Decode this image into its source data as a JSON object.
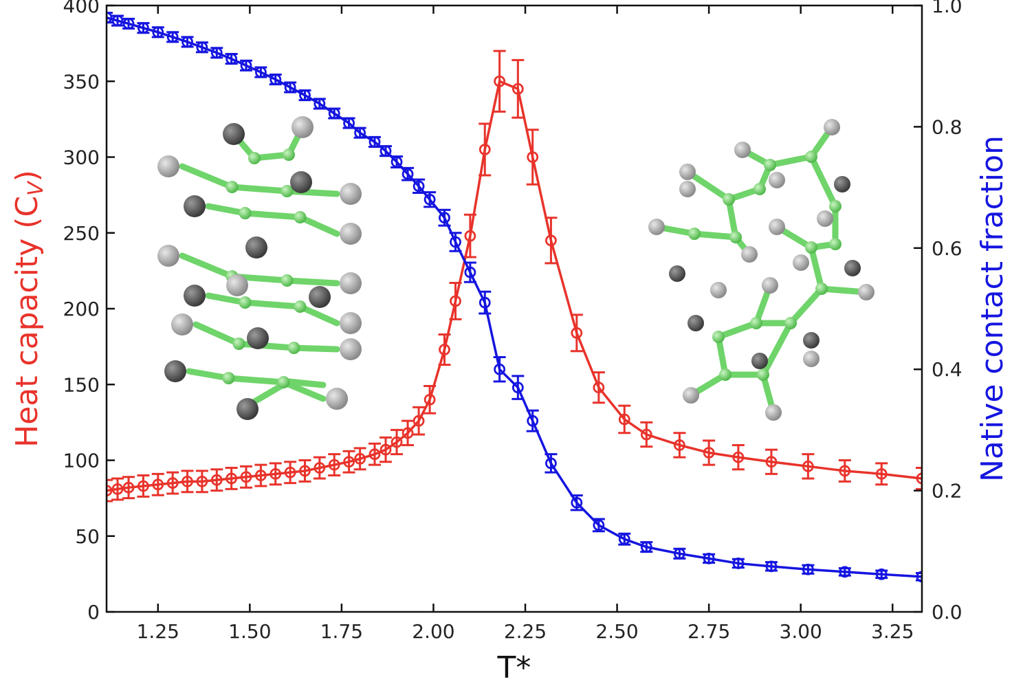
{
  "chart_data": {
    "type": "line",
    "xlabel": "T*",
    "ylabel_left": "Heat capacity (C",
    "ylabel_left_sub": "V",
    "ylabel_left_close": ")",
    "ylabel_right": "Native contact fraction",
    "xlim": [
      1.11,
      3.33
    ],
    "ylim_left": [
      0,
      400
    ],
    "ylim_right": [
      0.0,
      1.0
    ],
    "x_ticks": [
      "1.25",
      "1.50",
      "1.75",
      "2.00",
      "2.25",
      "2.50",
      "2.75",
      "3.00",
      "3.25"
    ],
    "y_ticks_left": [
      "0",
      "50",
      "100",
      "150",
      "200",
      "250",
      "300",
      "350",
      "400"
    ],
    "y_ticks_right": [
      "0.0",
      "0.2",
      "0.4",
      "0.6",
      "0.8",
      "1.0"
    ],
    "colors": {
      "heat_capacity": "#e8332b",
      "native_contacts": "#1515e0"
    },
    "series": [
      {
        "key": "heat_capacity",
        "axis": "left",
        "x": [
          1.11,
          1.14,
          1.17,
          1.21,
          1.25,
          1.29,
          1.33,
          1.37,
          1.41,
          1.45,
          1.49,
          1.53,
          1.57,
          1.61,
          1.65,
          1.69,
          1.73,
          1.77,
          1.8,
          1.84,
          1.87,
          1.9,
          1.93,
          1.96,
          1.99,
          2.03,
          2.06,
          2.1,
          2.14,
          2.18,
          2.23,
          2.27,
          2.32,
          2.39,
          2.45,
          2.52,
          2.58,
          2.67,
          2.75,
          2.83,
          2.92,
          3.02,
          3.12,
          3.22,
          3.33
        ],
        "y": [
          80,
          81,
          82,
          83,
          84,
          85,
          86,
          86,
          87,
          88,
          89,
          90,
          91,
          92,
          93,
          95,
          97,
          99,
          101,
          104,
          107,
          112,
          118,
          126,
          140,
          173,
          205,
          248,
          305,
          350,
          345,
          300,
          245,
          184,
          148,
          127,
          117,
          110,
          105,
          102,
          99,
          96,
          93,
          91,
          88
        ],
        "err": [
          7,
          7,
          7,
          7,
          7,
          7,
          7,
          7,
          7,
          7,
          7,
          7,
          7,
          7,
          7,
          7,
          7,
          7,
          7,
          7,
          8,
          8,
          8,
          9,
          9,
          10,
          12,
          14,
          17,
          20,
          19,
          18,
          15,
          12,
          10,
          9,
          8,
          8,
          8,
          8,
          8,
          8,
          7,
          7,
          7
        ]
      },
      {
        "key": "native_contacts",
        "axis": "right",
        "x": [
          1.11,
          1.14,
          1.17,
          1.21,
          1.25,
          1.29,
          1.33,
          1.37,
          1.41,
          1.45,
          1.49,
          1.53,
          1.57,
          1.61,
          1.65,
          1.69,
          1.73,
          1.77,
          1.8,
          1.84,
          1.87,
          1.9,
          1.93,
          1.96,
          1.99,
          2.03,
          2.06,
          2.1,
          2.14,
          2.18,
          2.23,
          2.27,
          2.32,
          2.39,
          2.45,
          2.52,
          2.58,
          2.67,
          2.75,
          2.83,
          2.92,
          3.02,
          3.12,
          3.22,
          3.33
        ],
        "y": [
          0.98,
          0.975,
          0.97,
          0.963,
          0.956,
          0.948,
          0.94,
          0.931,
          0.922,
          0.912,
          0.901,
          0.89,
          0.878,
          0.865,
          0.852,
          0.838,
          0.822,
          0.806,
          0.79,
          0.775,
          0.76,
          0.742,
          0.722,
          0.702,
          0.68,
          0.65,
          0.61,
          0.56,
          0.51,
          0.4,
          0.37,
          0.315,
          0.245,
          0.18,
          0.143,
          0.12,
          0.107,
          0.096,
          0.088,
          0.08,
          0.075,
          0.07,
          0.066,
          0.062,
          0.058
        ],
        "err": [
          0.008,
          0.008,
          0.008,
          0.008,
          0.008,
          0.008,
          0.008,
          0.008,
          0.008,
          0.008,
          0.008,
          0.008,
          0.008,
          0.008,
          0.008,
          0.008,
          0.008,
          0.008,
          0.008,
          0.008,
          0.008,
          0.009,
          0.01,
          0.011,
          0.012,
          0.013,
          0.015,
          0.016,
          0.018,
          0.02,
          0.019,
          0.017,
          0.015,
          0.012,
          0.01,
          0.009,
          0.008,
          0.008,
          0.007,
          0.007,
          0.007,
          0.007,
          0.006,
          0.006,
          0.006
        ]
      }
    ]
  }
}
